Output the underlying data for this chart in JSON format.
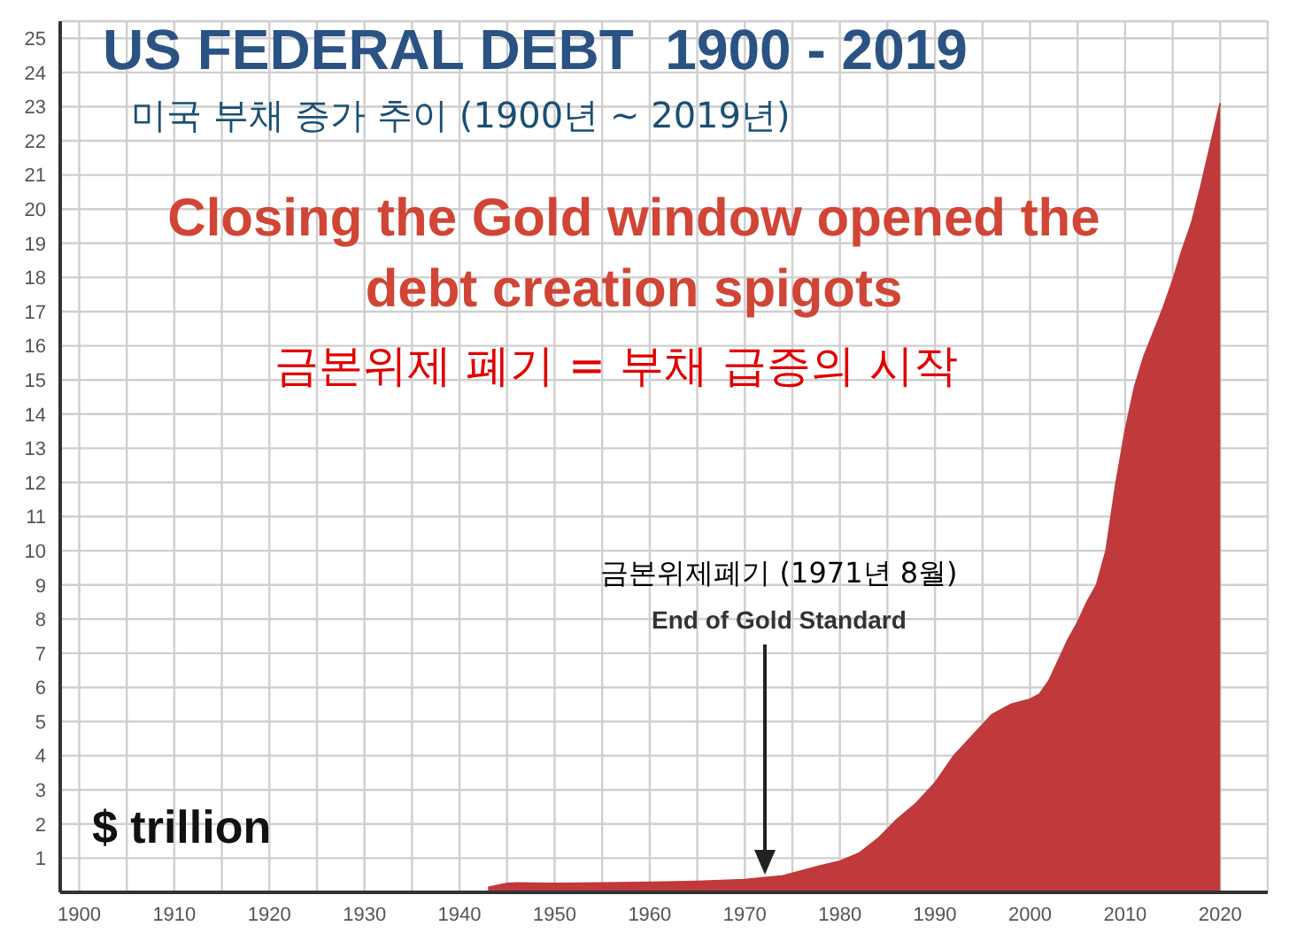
{
  "chart_data": {
    "type": "area",
    "title": "US FEDERAL DEBT  1900 - 2019",
    "subtitle": "미국 부채 증가 추이 (1900년 ~ 2019년)",
    "ylabel": "$ trillion",
    "annotations": [
      "Closing the Gold window opened the debt creation spigots",
      "금본위제 폐기 = 부채 급증의 시작",
      "금본위제폐기 (1971년 8월)",
      "End of Gold Standard"
    ],
    "x": [
      1943,
      1944,
      1945,
      1946,
      1950,
      1955,
      1960,
      1965,
      1970,
      1972,
      1974,
      1976,
      1978,
      1980,
      1982,
      1984,
      1986,
      1988,
      1990,
      1992,
      1994,
      1996,
      1998,
      2000,
      2001,
      2002,
      2003,
      2004,
      2005,
      2006,
      2007,
      2008,
      2009,
      2010,
      2011,
      2012,
      2013,
      2014,
      2015,
      2016,
      2017,
      2018,
      2019,
      2020
    ],
    "series": [
      {
        "color": "#c0393b",
        "values": [
          0.14,
          0.2,
          0.26,
          0.27,
          0.26,
          0.27,
          0.29,
          0.32,
          0.37,
          0.43,
          0.48,
          0.63,
          0.78,
          0.91,
          1.14,
          1.57,
          2.13,
          2.6,
          3.2,
          4.0,
          4.6,
          5.2,
          5.5,
          5.65,
          5.8,
          6.2,
          6.8,
          7.4,
          7.9,
          8.5,
          9.0,
          10.0,
          11.9,
          13.5,
          14.8,
          15.7,
          16.4,
          17.1,
          17.9,
          18.8,
          19.6,
          20.7,
          21.9,
          23.1
        ]
      }
    ],
    "xlim": [
      1898,
      2025
    ],
    "xticks": [
      1900,
      {
        "value": 1905,
        "label": null
      },
      1910,
      {
        "value": 1915,
        "label": null
      },
      1920,
      {
        "value": 1925,
        "label": null
      },
      1930,
      {
        "value": 1935,
        "label": null
      },
      1940,
      {
        "value": 1945,
        "label": null
      },
      1950,
      {
        "value": 1955,
        "label": null
      },
      1960,
      {
        "value": 1965,
        "label": null
      },
      1970,
      {
        "value": 1975,
        "label": null
      },
      1980,
      {
        "value": 1985,
        "label": null
      },
      1990,
      {
        "value": 1995,
        "label": null
      },
      2000,
      {
        "value": 2005,
        "label": null
      },
      2010,
      {
        "value": 2015,
        "label": null
      },
      2020
    ],
    "ylim": [
      0,
      25.5
    ],
    "yticks": [
      1,
      2,
      3,
      4,
      5,
      6,
      7,
      8,
      9,
      10,
      11,
      12,
      13,
      14,
      15,
      16,
      17,
      18,
      19,
      20,
      21,
      22,
      23,
      24,
      25
    ],
    "grid": true
  }
}
